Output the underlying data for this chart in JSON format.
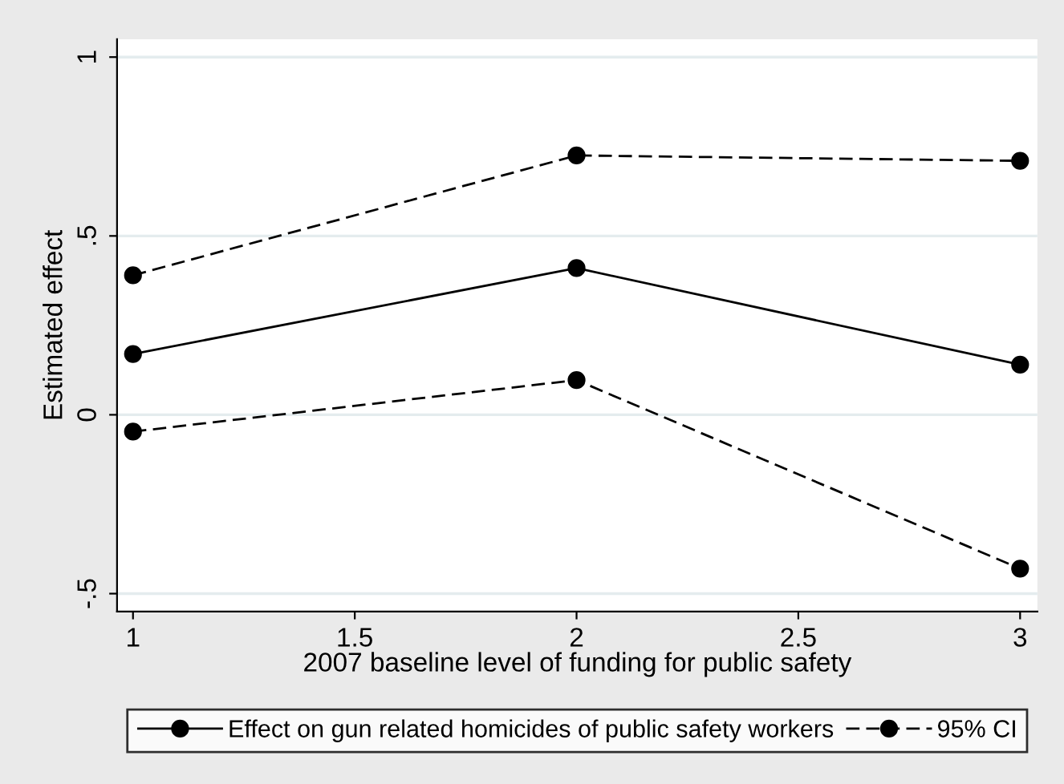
{
  "chart_data": {
    "type": "line",
    "xlabel": "2007 baseline level of funding for public safety",
    "ylabel": "Estimated effect",
    "x": [
      1,
      2,
      3
    ],
    "series": [
      {
        "name": "Effect on gun related homicides of public safety workers",
        "color": "#000000",
        "values": [
          0.17,
          0.41,
          0.14
        ],
        "line_style": "solid"
      },
      {
        "name": "95% CI",
        "color": "#000000",
        "values": [
          0.39,
          0.725,
          0.71
        ],
        "line_style": "dashed"
      },
      {
        "color": "#000000",
        "values": [
          -0.047,
          0.097,
          -0.43
        ],
        "line_style": "dashed"
      }
    ],
    "xlim": [
      0.964,
      3.039
    ],
    "ylim": [
      -0.55,
      1.05
    ],
    "xticks": [
      1,
      1.5,
      2,
      2.5,
      3
    ],
    "yticks": [
      {
        "value": -0.5,
        "label": "-.5"
      },
      0,
      {
        "value": 0.5,
        "label": ".5"
      },
      1
    ],
    "grid": "y",
    "legend": "bottom",
    "marker": "circle"
  }
}
